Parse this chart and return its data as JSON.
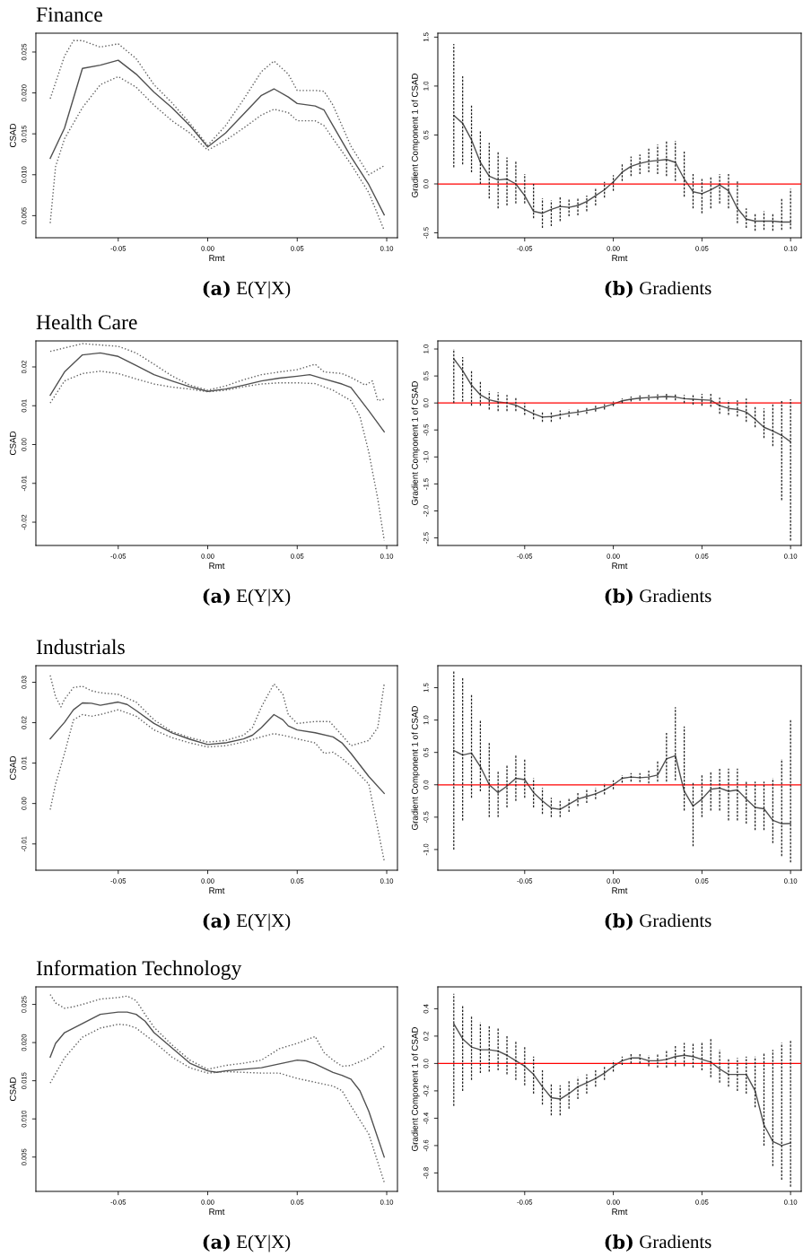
{
  "chart_data": [
    {
      "type": "line",
      "title": "Finance",
      "xlabel": "Rmt",
      "ylabel": "CSAD",
      "annotations": [
        "(a) E(Y|X)"
      ],
      "xlim": [
        -0.096,
        0.106
      ],
      "ylim": [
        0.0023,
        0.0273
      ],
      "xticks": [
        {
          "value": -0.05,
          "label": "-0.05"
        },
        {
          "value": 0,
          "label": "0.00"
        },
        {
          "value": 0.05,
          "label": "0.05"
        },
        {
          "value": 0.1,
          "label": "0.10"
        }
      ],
      "yticks": [
        {
          "value": 0.005,
          "label": "0.005"
        },
        {
          "value": 0.01,
          "label": "0.010"
        },
        {
          "value": 0.015,
          "label": "0.015"
        },
        {
          "value": 0.02,
          "label": "0.020"
        },
        {
          "value": 0.025,
          "label": "0.025"
        }
      ],
      "series": [
        {
          "color": "#505050",
          "line_style": "solid",
          "x": [
            -0.088,
            -0.08,
            -0.07,
            -0.06,
            -0.05,
            -0.04,
            -0.03,
            -0.02,
            -0.01,
            0,
            0.01,
            0.02,
            0.03,
            0.037,
            0.045,
            0.05,
            0.06,
            0.065,
            0.07,
            0.08,
            0.09,
            0.0986
          ],
          "values": [
            0.012,
            0.0157,
            0.023,
            0.0234,
            0.024,
            0.0223,
            0.0201,
            0.0182,
            0.016,
            0.0134,
            0.0151,
            0.0174,
            0.0197,
            0.0205,
            0.0195,
            0.0187,
            0.0184,
            0.0179,
            0.016,
            0.0122,
            0.0088,
            0.0051
          ]
        },
        {
          "color": "#606060",
          "line_style": "dotted",
          "x": [
            -0.088,
            -0.08,
            -0.075,
            -0.07,
            -0.06,
            -0.05,
            -0.04,
            -0.03,
            -0.02,
            -0.01,
            0,
            0.01,
            0.02,
            0.03,
            0.037,
            0.045,
            0.05,
            0.06,
            0.065,
            0.07,
            0.08,
            0.09,
            0.0986
          ],
          "values": [
            0.0193,
            0.0245,
            0.0264,
            0.0264,
            0.0256,
            0.026,
            0.0242,
            0.021,
            0.0188,
            0.0163,
            0.0136,
            0.016,
            0.0192,
            0.0226,
            0.0239,
            0.0223,
            0.0203,
            0.0203,
            0.0202,
            0.0185,
            0.0135,
            0.01,
            0.0111
          ]
        },
        {
          "color": "#606060",
          "line_style": "dotted",
          "x": [
            -0.088,
            -0.085,
            -0.08,
            -0.07,
            -0.06,
            -0.05,
            -0.04,
            -0.03,
            -0.02,
            -0.01,
            0,
            0.01,
            0.02,
            0.03,
            0.037,
            0.045,
            0.05,
            0.06,
            0.065,
            0.07,
            0.08,
            0.09,
            0.0986
          ],
          "values": [
            0.0041,
            0.011,
            0.0144,
            0.0182,
            0.021,
            0.022,
            0.0207,
            0.0185,
            0.0166,
            0.0151,
            0.013,
            0.0142,
            0.0157,
            0.0173,
            0.018,
            0.0176,
            0.0166,
            0.0166,
            0.016,
            0.0144,
            0.0113,
            0.0078,
            0.0032
          ]
        }
      ]
    },
    {
      "type": "line",
      "xlabel": "Rmt",
      "ylabel": "Gradient Component 1 of CSAD",
      "annotations": [
        "(b) Gradients"
      ],
      "xlim": [
        -0.099,
        0.106
      ],
      "ylim": [
        -0.55,
        1.54
      ],
      "xticks": [
        {
          "value": -0.05,
          "label": "-0.05"
        },
        {
          "value": 0,
          "label": "0.00"
        },
        {
          "value": 0.05,
          "label": "0.05"
        },
        {
          "value": 0.1,
          "label": "0.10"
        }
      ],
      "yticks": [
        {
          "value": -0.5,
          "label": "-0.5"
        },
        {
          "value": 0,
          "label": "0.0"
        },
        {
          "value": 0.5,
          "label": "0.5"
        },
        {
          "value": 1,
          "label": "1.0"
        },
        {
          "value": 1.5,
          "label": "1.5"
        }
      ],
      "ref_lines": [
        {
          "axis": "y",
          "value": 0,
          "color": "#ff0000"
        }
      ],
      "series": [
        {
          "color": "#505050",
          "line_style": "solid",
          "x": [
            -0.09,
            -0.085,
            -0.08,
            -0.075,
            -0.07,
            -0.065,
            -0.06,
            -0.055,
            -0.05,
            -0.045,
            -0.04,
            -0.035,
            -0.03,
            -0.025,
            -0.02,
            -0.015,
            -0.01,
            -0.005,
            0,
            0.005,
            0.01,
            0.015,
            0.02,
            0.025,
            0.03,
            0.035,
            0.04,
            0.045,
            0.05,
            0.055,
            0.06,
            0.065,
            0.07,
            0.075,
            0.08,
            0.085,
            0.09,
            0.095,
            0.1
          ],
          "values": [
            0.7,
            0.62,
            0.45,
            0.22,
            0.08,
            0.04,
            0.05,
            0.0,
            -0.12,
            -0.28,
            -0.3,
            -0.26,
            -0.23,
            -0.24,
            -0.22,
            -0.18,
            -0.12,
            -0.06,
            0.02,
            0.12,
            0.18,
            0.21,
            0.23,
            0.24,
            0.25,
            0.22,
            0.05,
            -0.08,
            -0.1,
            -0.06,
            -0.01,
            -0.07,
            -0.25,
            -0.36,
            -0.38,
            -0.38,
            -0.38,
            -0.39,
            -0.39
          ],
          "errors": [
            [
              0.17,
              1.43
            ],
            [
              0.2,
              1.1
            ],
            [
              0.12,
              0.8
            ],
            [
              0.0,
              0.55
            ],
            [
              -0.15,
              0.42
            ],
            [
              -0.25,
              0.33
            ],
            [
              -0.22,
              0.27
            ],
            [
              -0.2,
              0.23
            ],
            [
              -0.2,
              0.1
            ],
            [
              -0.35,
              0.0
            ],
            [
              -0.45,
              -0.15
            ],
            [
              -0.43,
              -0.17
            ],
            [
              -0.38,
              -0.13
            ],
            [
              -0.33,
              -0.15
            ],
            [
              -0.32,
              -0.15
            ],
            [
              -0.28,
              -0.12
            ],
            [
              -0.22,
              -0.05
            ],
            [
              -0.14,
              0.02
            ],
            [
              -0.07,
              0.09
            ],
            [
              0.03,
              0.2
            ],
            [
              0.08,
              0.28
            ],
            [
              0.1,
              0.3
            ],
            [
              0.12,
              0.36
            ],
            [
              0.1,
              0.4
            ],
            [
              0.08,
              0.44
            ],
            [
              0.03,
              0.44
            ],
            [
              -0.13,
              0.33
            ],
            [
              -0.25,
              0.1
            ],
            [
              -0.3,
              0.05
            ],
            [
              -0.25,
              0.08
            ],
            [
              -0.2,
              0.1
            ],
            [
              -0.25,
              0.1
            ],
            [
              -0.4,
              0.03
            ],
            [
              -0.45,
              -0.25
            ],
            [
              -0.48,
              -0.3
            ],
            [
              -0.47,
              -0.28
            ],
            [
              -0.48,
              -0.3
            ],
            [
              -0.47,
              -0.15
            ],
            [
              -0.46,
              -0.05
            ]
          ]
        }
      ]
    },
    {
      "type": "line",
      "title": "Health Care",
      "xlabel": "Rmt",
      "ylabel": "CSAD",
      "annotations": [
        "(a) E(Y|X)"
      ],
      "xlim": [
        -0.096,
        0.106
      ],
      "ylim": [
        -0.026,
        0.0267
      ],
      "xticks": [
        {
          "value": -0.05,
          "label": "-0.05"
        },
        {
          "value": 0,
          "label": "0.00"
        },
        {
          "value": 0.05,
          "label": "0.05"
        },
        {
          "value": 0.1,
          "label": "0.10"
        }
      ],
      "yticks": [
        {
          "value": -0.02,
          "label": "-0.02"
        },
        {
          "value": -0.01,
          "label": "-0.01"
        },
        {
          "value": 0,
          "label": "0.00"
        },
        {
          "value": 0.01,
          "label": "0.01"
        },
        {
          "value": 0.02,
          "label": "0.02"
        }
      ],
      "series": [
        {
          "color": "#505050",
          "line_style": "solid",
          "x": [
            -0.088,
            -0.08,
            -0.07,
            -0.06,
            -0.05,
            -0.04,
            -0.03,
            -0.02,
            -0.01,
            0,
            0.01,
            0.02,
            0.03,
            0.04,
            0.05,
            0.057,
            0.065,
            0.075,
            0.08,
            0.09,
            0.0986
          ],
          "values": [
            0.0127,
            0.0187,
            0.0231,
            0.0236,
            0.0227,
            0.0204,
            0.018,
            0.0164,
            0.0149,
            0.0137,
            0.0143,
            0.0153,
            0.0164,
            0.0171,
            0.0176,
            0.018,
            0.0169,
            0.0156,
            0.0147,
            0.0087,
            0.0033
          ]
        },
        {
          "color": "#606060",
          "line_style": "dotted",
          "x": [
            -0.088,
            -0.07,
            -0.05,
            -0.04,
            -0.03,
            -0.02,
            -0.01,
            0,
            0.01,
            0.02,
            0.03,
            0.04,
            0.05,
            0.06,
            0.065,
            0.075,
            0.08,
            0.088,
            0.092,
            0.095,
            0.0986
          ],
          "values": [
            0.024,
            0.026,
            0.0253,
            0.0236,
            0.0207,
            0.0177,
            0.0153,
            0.014,
            0.0151,
            0.0167,
            0.018,
            0.0187,
            0.0193,
            0.0207,
            0.0187,
            0.0183,
            0.0173,
            0.0153,
            0.0164,
            0.0113,
            0.0117
          ]
        },
        {
          "color": "#606060",
          "line_style": "dotted",
          "x": [
            -0.088,
            -0.08,
            -0.07,
            -0.06,
            -0.05,
            -0.04,
            -0.03,
            -0.02,
            -0.01,
            0,
            0.01,
            0.02,
            0.03,
            0.04,
            0.05,
            0.06,
            0.07,
            0.08,
            0.085,
            0.09,
            0.095,
            0.0986
          ],
          "values": [
            0.0107,
            0.0164,
            0.0183,
            0.0189,
            0.0183,
            0.0169,
            0.0156,
            0.0148,
            0.0143,
            0.0136,
            0.014,
            0.0149,
            0.0156,
            0.0159,
            0.0159,
            0.0157,
            0.014,
            0.0113,
            0.0073,
            -0.002,
            -0.014,
            -0.0247
          ]
        }
      ]
    },
    {
      "type": "line",
      "xlabel": "Rmt",
      "ylabel": "Gradient Component 1 of CSAD",
      "annotations": [
        "(b) Gradients"
      ],
      "xlim": [
        -0.099,
        0.106
      ],
      "ylim": [
        -2.64,
        1.15
      ],
      "xticks": [
        {
          "value": -0.05,
          "label": "-0.05"
        },
        {
          "value": 0,
          "label": "0.00"
        },
        {
          "value": 0.05,
          "label": "0.05"
        },
        {
          "value": 0.1,
          "label": "0.10"
        }
      ],
      "yticks": [
        {
          "value": -2.5,
          "label": "-2.5"
        },
        {
          "value": -2,
          "label": "-2.0"
        },
        {
          "value": -1.5,
          "label": "-1.5"
        },
        {
          "value": -1,
          "label": "-1.0"
        },
        {
          "value": -0.5,
          "label": "-0.5"
        },
        {
          "value": 0,
          "label": "0.0"
        },
        {
          "value": 0.5,
          "label": "0.5"
        },
        {
          "value": 1,
          "label": "1.0"
        }
      ],
      "ref_lines": [
        {
          "axis": "y",
          "value": 0,
          "color": "#ff0000"
        }
      ],
      "series": [
        {
          "color": "#505050",
          "line_style": "solid",
          "x": [
            -0.09,
            -0.085,
            -0.08,
            -0.075,
            -0.07,
            -0.065,
            -0.06,
            -0.055,
            -0.05,
            -0.045,
            -0.04,
            -0.035,
            -0.03,
            -0.025,
            -0.02,
            -0.015,
            -0.01,
            -0.005,
            0,
            0.005,
            0.01,
            0.015,
            0.02,
            0.025,
            0.03,
            0.035,
            0.04,
            0.045,
            0.05,
            0.055,
            0.06,
            0.065,
            0.07,
            0.075,
            0.08,
            0.085,
            0.09,
            0.095,
            0.1
          ],
          "values": [
            0.82,
            0.6,
            0.33,
            0.15,
            0.06,
            0.02,
            0.0,
            -0.04,
            -0.12,
            -0.2,
            -0.26,
            -0.25,
            -0.22,
            -0.19,
            -0.17,
            -0.14,
            -0.11,
            -0.07,
            -0.02,
            0.04,
            0.07,
            0.09,
            0.1,
            0.11,
            0.12,
            0.11,
            0.08,
            0.07,
            0.06,
            0.05,
            -0.05,
            -0.1,
            -0.12,
            -0.17,
            -0.3,
            -0.45,
            -0.52,
            -0.6,
            -0.72
          ],
          "errors": [
            [
              0.0,
              1.0
            ],
            [
              0.03,
              0.85
            ],
            [
              -0.05,
              0.6
            ],
            [
              -0.05,
              0.4
            ],
            [
              -0.12,
              0.22
            ],
            [
              -0.15,
              0.2
            ],
            [
              -0.15,
              0.15
            ],
            [
              -0.15,
              0.1
            ],
            [
              -0.22,
              0.0
            ],
            [
              -0.3,
              -0.1
            ],
            [
              -0.35,
              -0.17
            ],
            [
              -0.35,
              -0.17
            ],
            [
              -0.3,
              -0.14
            ],
            [
              -0.26,
              -0.12
            ],
            [
              -0.23,
              -0.1
            ],
            [
              -0.2,
              -0.08
            ],
            [
              -0.16,
              -0.05
            ],
            [
              -0.12,
              -0.02
            ],
            [
              -0.06,
              0.03
            ],
            [
              0.0,
              0.08
            ],
            [
              0.03,
              0.12
            ],
            [
              0.04,
              0.14
            ],
            [
              0.05,
              0.15
            ],
            [
              0.06,
              0.16
            ],
            [
              0.06,
              0.17
            ],
            [
              0.05,
              0.16
            ],
            [
              0.0,
              0.15
            ],
            [
              -0.03,
              0.15
            ],
            [
              -0.05,
              0.17
            ],
            [
              -0.07,
              0.18
            ],
            [
              -0.2,
              0.1
            ],
            [
              -0.22,
              0.05
            ],
            [
              -0.25,
              0.05
            ],
            [
              -0.35,
              0.08
            ],
            [
              -0.45,
              -0.05
            ],
            [
              -0.65,
              -0.1
            ],
            [
              -0.8,
              0.0
            ],
            [
              -1.8,
              0.05
            ],
            [
              -2.55,
              0.07
            ]
          ]
        }
      ]
    },
    {
      "type": "line",
      "title": "Industrials",
      "xlabel": "Rmt",
      "ylabel": "CSAD",
      "annotations": [
        "(a) E(Y|X)"
      ],
      "xlim": [
        -0.096,
        0.106
      ],
      "ylim": [
        -0.0165,
        0.0341
      ],
      "xticks": [
        {
          "value": -0.05,
          "label": "-0.05"
        },
        {
          "value": 0,
          "label": "0.00"
        },
        {
          "value": 0.05,
          "label": "0.05"
        },
        {
          "value": 0.1,
          "label": "0.10"
        }
      ],
      "yticks": [
        {
          "value": -0.01,
          "label": "-0.01"
        },
        {
          "value": 0,
          "label": "0.00"
        },
        {
          "value": 0.01,
          "label": "0.01"
        },
        {
          "value": 0.02,
          "label": "0.02"
        },
        {
          "value": 0.03,
          "label": "0.03"
        }
      ],
      "series": [
        {
          "color": "#505050",
          "line_style": "solid",
          "x": [
            -0.088,
            -0.08,
            -0.075,
            -0.07,
            -0.065,
            -0.06,
            -0.05,
            -0.045,
            -0.04,
            -0.03,
            -0.02,
            -0.01,
            0,
            0.01,
            0.02,
            0.025,
            0.03,
            0.037,
            0.042,
            0.045,
            0.05,
            0.06,
            0.07,
            0.075,
            0.08,
            0.09,
            0.0986
          ],
          "values": [
            0.016,
            0.0201,
            0.0232,
            0.0249,
            0.0248,
            0.0243,
            0.0251,
            0.0245,
            0.023,
            0.0198,
            0.0175,
            0.0159,
            0.0146,
            0.015,
            0.016,
            0.0169,
            0.0188,
            0.022,
            0.0207,
            0.0192,
            0.0182,
            0.0175,
            0.0165,
            0.015,
            0.0124,
            0.0067,
            0.0025
          ]
        },
        {
          "color": "#606060",
          "line_style": "dotted",
          "x": [
            -0.088,
            -0.085,
            -0.082,
            -0.08,
            -0.075,
            -0.07,
            -0.065,
            -0.06,
            -0.05,
            -0.04,
            -0.03,
            -0.02,
            -0.01,
            0,
            0.01,
            0.02,
            0.025,
            0.03,
            0.037,
            0.042,
            0.045,
            0.05,
            0.06,
            0.068,
            0.075,
            0.08,
            0.09,
            0.095,
            0.0986
          ],
          "values": [
            0.0317,
            0.0264,
            0.0239,
            0.0258,
            0.0287,
            0.029,
            0.0279,
            0.0274,
            0.027,
            0.0251,
            0.0207,
            0.0178,
            0.0163,
            0.0152,
            0.0156,
            0.0169,
            0.0188,
            0.0239,
            0.0296,
            0.027,
            0.022,
            0.0198,
            0.0203,
            0.0203,
            0.0169,
            0.0143,
            0.0156,
            0.0188,
            0.0296
          ]
        },
        {
          "color": "#606060",
          "line_style": "dotted",
          "x": [
            -0.088,
            -0.085,
            -0.08,
            -0.075,
            -0.07,
            -0.065,
            -0.06,
            -0.05,
            -0.04,
            -0.03,
            -0.02,
            -0.01,
            0,
            0.01,
            0.02,
            0.03,
            0.037,
            0.045,
            0.05,
            0.06,
            0.065,
            0.07,
            0.075,
            0.08,
            0.09,
            0.0986
          ],
          "values": [
            -0.0015,
            0.0048,
            0.0124,
            0.0207,
            0.022,
            0.0216,
            0.022,
            0.0232,
            0.0216,
            0.0182,
            0.0163,
            0.015,
            0.014,
            0.0143,
            0.0152,
            0.0165,
            0.0173,
            0.0166,
            0.016,
            0.015,
            0.0124,
            0.0127,
            0.0112,
            0.0093,
            0.0048,
            -0.0142
          ]
        }
      ]
    },
    {
      "type": "line",
      "xlabel": "Rmt",
      "ylabel": "Gradient Component 1 of CSAD",
      "annotations": [
        "(b) Gradients"
      ],
      "xlim": [
        -0.099,
        0.106
      ],
      "ylim": [
        -1.32,
        1.84
      ],
      "xticks": [
        {
          "value": -0.05,
          "label": "-0.05"
        },
        {
          "value": 0,
          "label": "0.00"
        },
        {
          "value": 0.05,
          "label": "0.05"
        },
        {
          "value": 0.1,
          "label": "0.10"
        }
      ],
      "yticks": [
        {
          "value": -1,
          "label": "-1.0"
        },
        {
          "value": -0.5,
          "label": "-0.5"
        },
        {
          "value": 0,
          "label": "0.0"
        },
        {
          "value": 0.5,
          "label": "0.5"
        },
        {
          "value": 1,
          "label": "1.0"
        },
        {
          "value": 1.5,
          "label": "1.5"
        }
      ],
      "ref_lines": [
        {
          "axis": "y",
          "value": 0,
          "color": "#ff0000"
        }
      ],
      "series": [
        {
          "color": "#505050",
          "line_style": "solid",
          "x": [
            -0.09,
            -0.085,
            -0.08,
            -0.075,
            -0.07,
            -0.065,
            -0.06,
            -0.055,
            -0.05,
            -0.045,
            -0.04,
            -0.035,
            -0.03,
            -0.025,
            -0.02,
            -0.015,
            -0.01,
            -0.005,
            0,
            0.005,
            0.01,
            0.015,
            0.02,
            0.025,
            0.03,
            0.035,
            0.04,
            0.045,
            0.05,
            0.055,
            0.06,
            0.065,
            0.07,
            0.075,
            0.08,
            0.085,
            0.09,
            0.095,
            0.1
          ],
          "values": [
            0.53,
            0.46,
            0.49,
            0.28,
            0.0,
            -0.12,
            -0.02,
            0.1,
            0.08,
            -0.12,
            -0.25,
            -0.36,
            -0.38,
            -0.3,
            -0.22,
            -0.18,
            -0.14,
            -0.08,
            0.0,
            0.1,
            0.12,
            0.11,
            0.12,
            0.15,
            0.4,
            0.45,
            -0.1,
            -0.33,
            -0.22,
            -0.07,
            -0.05,
            -0.1,
            -0.08,
            -0.22,
            -0.35,
            -0.37,
            -0.55,
            -0.6,
            -0.6
          ],
          "errors": [
            [
              -1.0,
              1.75
            ],
            [
              -0.55,
              1.65
            ],
            [
              -0.2,
              1.4
            ],
            [
              -0.1,
              1.0
            ],
            [
              -0.5,
              0.65
            ],
            [
              -0.5,
              0.22
            ],
            [
              -0.35,
              0.3
            ],
            [
              -0.25,
              0.45
            ],
            [
              -0.2,
              0.4
            ],
            [
              -0.35,
              0.1
            ],
            [
              -0.45,
              -0.05
            ],
            [
              -0.5,
              -0.2
            ],
            [
              -0.5,
              -0.25
            ],
            [
              -0.42,
              -0.2
            ],
            [
              -0.33,
              -0.12
            ],
            [
              -0.28,
              -0.08
            ],
            [
              -0.22,
              -0.05
            ],
            [
              -0.15,
              0.02
            ],
            [
              -0.07,
              0.07
            ],
            [
              0.03,
              0.15
            ],
            [
              0.05,
              0.18
            ],
            [
              0.04,
              0.18
            ],
            [
              0.02,
              0.22
            ],
            [
              0.05,
              0.38
            ],
            [
              0.05,
              0.8
            ],
            [
              0.07,
              1.2
            ],
            [
              -0.4,
              0.9
            ],
            [
              -0.95,
              0.05
            ],
            [
              -0.5,
              0.15
            ],
            [
              -0.4,
              0.2
            ],
            [
              -0.4,
              0.25
            ],
            [
              -0.55,
              0.25
            ],
            [
              -0.55,
              0.25
            ],
            [
              -0.6,
              0.05
            ],
            [
              -0.7,
              0.05
            ],
            [
              -0.7,
              0.05
            ],
            [
              -0.9,
              0.1
            ],
            [
              -1.1,
              0.4
            ],
            [
              -1.2,
              1.0
            ]
          ]
        }
      ]
    },
    {
      "type": "line",
      "title": "Information Technology",
      "xlabel": "Rmt",
      "ylabel": "CSAD",
      "annotations": [
        "(a) E(Y|X)"
      ],
      "xlim": [
        -0.096,
        0.106
      ],
      "ylim": [
        0.0005,
        0.0273
      ],
      "xticks": [
        {
          "value": -0.05,
          "label": "-0.05"
        },
        {
          "value": 0,
          "label": "0.00"
        },
        {
          "value": 0.05,
          "label": "0.05"
        },
        {
          "value": 0.1,
          "label": "0.10"
        }
      ],
      "yticks": [
        {
          "value": 0.005,
          "label": "0.005"
        },
        {
          "value": 0.01,
          "label": "0.010"
        },
        {
          "value": 0.015,
          "label": "0.015"
        },
        {
          "value": 0.02,
          "label": "0.020"
        },
        {
          "value": 0.025,
          "label": "0.025"
        }
      ],
      "series": [
        {
          "color": "#505050",
          "line_style": "solid",
          "x": [
            -0.088,
            -0.085,
            -0.08,
            -0.07,
            -0.06,
            -0.05,
            -0.045,
            -0.04,
            -0.035,
            -0.03,
            -0.02,
            -0.01,
            0,
            0.005,
            0.01,
            0.02,
            0.03,
            0.04,
            0.05,
            0.055,
            0.06,
            0.07,
            0.075,
            0.08,
            0.085,
            0.09,
            0.0986
          ],
          "values": [
            0.0181,
            0.0199,
            0.0213,
            0.0225,
            0.0237,
            0.024,
            0.024,
            0.0237,
            0.0228,
            0.0213,
            0.0193,
            0.0173,
            0.0163,
            0.0161,
            0.0163,
            0.0165,
            0.0167,
            0.0172,
            0.0177,
            0.0176,
            0.0172,
            0.0161,
            0.0157,
            0.0152,
            0.0137,
            0.011,
            0.005
          ]
        },
        {
          "color": "#606060",
          "line_style": "dotted",
          "x": [
            -0.088,
            -0.085,
            -0.08,
            -0.075,
            -0.07,
            -0.06,
            -0.05,
            -0.045,
            -0.04,
            -0.035,
            -0.03,
            -0.02,
            -0.01,
            0,
            0.01,
            0.02,
            0.03,
            0.04,
            0.05,
            0.06,
            0.065,
            0.07,
            0.075,
            0.08,
            0.09,
            0.0986
          ],
          "values": [
            0.0263,
            0.0252,
            0.0245,
            0.0247,
            0.025,
            0.0257,
            0.0259,
            0.0261,
            0.0255,
            0.0237,
            0.022,
            0.0197,
            0.0177,
            0.0165,
            0.017,
            0.0173,
            0.0177,
            0.0192,
            0.0199,
            0.0208,
            0.0187,
            0.0177,
            0.0169,
            0.017,
            0.018,
            0.0195
          ]
        },
        {
          "color": "#606060",
          "line_style": "dotted",
          "x": [
            -0.088,
            -0.08,
            -0.07,
            -0.06,
            -0.05,
            -0.045,
            -0.04,
            -0.03,
            -0.02,
            -0.01,
            0,
            0.01,
            0.02,
            0.03,
            0.04,
            0.05,
            0.06,
            0.07,
            0.075,
            0.08,
            0.09,
            0.0986
          ],
          "values": [
            0.0147,
            0.018,
            0.0207,
            0.0219,
            0.0224,
            0.0223,
            0.0219,
            0.0201,
            0.0181,
            0.0167,
            0.016,
            0.0162,
            0.0161,
            0.016,
            0.016,
            0.0153,
            0.0148,
            0.0143,
            0.0137,
            0.0117,
            0.008,
            0.0017
          ]
        }
      ]
    },
    {
      "type": "line",
      "xlabel": "Rmt",
      "ylabel": "Gradient Component 1 of CSAD",
      "annotations": [
        "(b) Gradients"
      ],
      "xlim": [
        -0.099,
        0.106
      ],
      "ylim": [
        -0.935,
        0.56
      ],
      "xticks": [
        {
          "value": -0.05,
          "label": "-0.05"
        },
        {
          "value": 0,
          "label": "0.00"
        },
        {
          "value": 0.05,
          "label": "0.05"
        },
        {
          "value": 0.1,
          "label": "0.10"
        }
      ],
      "yticks": [
        {
          "value": -0.8,
          "label": "-0.8"
        },
        {
          "value": -0.6,
          "label": "-0.6"
        },
        {
          "value": -0.4,
          "label": "-0.4"
        },
        {
          "value": -0.2,
          "label": "-0.2"
        },
        {
          "value": 0,
          "label": "0.0"
        },
        {
          "value": 0.2,
          "label": "0.2"
        },
        {
          "value": 0.4,
          "label": "0.4"
        }
      ],
      "ref_lines": [
        {
          "axis": "y",
          "value": 0,
          "color": "#ff0000"
        }
      ],
      "series": [
        {
          "color": "#505050",
          "line_style": "solid",
          "x": [
            -0.09,
            -0.085,
            -0.08,
            -0.075,
            -0.07,
            -0.065,
            -0.06,
            -0.055,
            -0.05,
            -0.045,
            -0.04,
            -0.035,
            -0.03,
            -0.025,
            -0.02,
            -0.015,
            -0.01,
            -0.005,
            0,
            0.005,
            0.01,
            0.015,
            0.02,
            0.025,
            0.03,
            0.035,
            0.04,
            0.045,
            0.05,
            0.055,
            0.06,
            0.065,
            0.07,
            0.075,
            0.08,
            0.085,
            0.09,
            0.095,
            0.1
          ],
          "values": [
            0.29,
            0.18,
            0.12,
            0.1,
            0.1,
            0.09,
            0.06,
            0.02,
            -0.02,
            -0.08,
            -0.17,
            -0.25,
            -0.26,
            -0.22,
            -0.17,
            -0.14,
            -0.11,
            -0.07,
            -0.02,
            0.02,
            0.04,
            0.04,
            0.02,
            0.02,
            0.03,
            0.05,
            0.06,
            0.05,
            0.03,
            0.01,
            -0.04,
            -0.08,
            -0.08,
            -0.08,
            -0.2,
            -0.45,
            -0.57,
            -0.6,
            -0.58
          ],
          "errors": [
            [
              -0.31,
              0.51
            ],
            [
              -0.2,
              0.42
            ],
            [
              -0.12,
              0.35
            ],
            [
              -0.07,
              0.3
            ],
            [
              -0.06,
              0.28
            ],
            [
              -0.05,
              0.26
            ],
            [
              -0.08,
              0.2
            ],
            [
              -0.12,
              0.16
            ],
            [
              -0.16,
              0.12
            ],
            [
              -0.22,
              0.05
            ],
            [
              -0.3,
              -0.05
            ],
            [
              -0.38,
              -0.15
            ],
            [
              -0.38,
              -0.16
            ],
            [
              -0.33,
              -0.13
            ],
            [
              -0.26,
              -0.1
            ],
            [
              -0.22,
              -0.08
            ],
            [
              -0.17,
              -0.05
            ],
            [
              -0.12,
              -0.02
            ],
            [
              -0.06,
              0.02
            ],
            [
              -0.01,
              0.05
            ],
            [
              0.0,
              0.07
            ],
            [
              0.0,
              0.07
            ],
            [
              -0.02,
              0.06
            ],
            [
              -0.03,
              0.07
            ],
            [
              -0.03,
              0.1
            ],
            [
              -0.02,
              0.13
            ],
            [
              -0.02,
              0.15
            ],
            [
              -0.03,
              0.15
            ],
            [
              -0.05,
              0.16
            ],
            [
              -0.1,
              0.18
            ],
            [
              -0.14,
              0.1
            ],
            [
              -0.17,
              0.03
            ],
            [
              -0.2,
              0.04
            ],
            [
              -0.22,
              0.05
            ],
            [
              -0.32,
              0.05
            ],
            [
              -0.6,
              0.08
            ],
            [
              -0.75,
              0.1
            ],
            [
              -0.85,
              0.15
            ],
            [
              -0.9,
              0.17
            ]
          ]
        }
      ]
    }
  ]
}
